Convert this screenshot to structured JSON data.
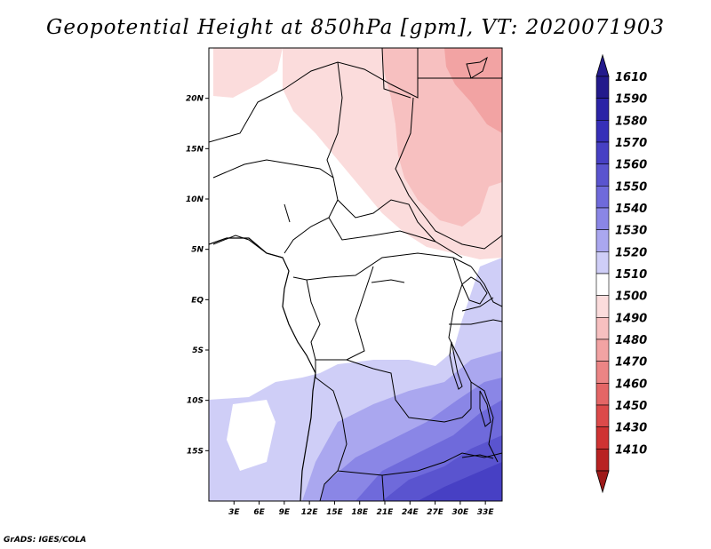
{
  "title": "Geopotential Height at 850hPa [gpm], VT: 2020071903",
  "footer": "GrADS: IGES/COLA",
  "map": {
    "lon_range": [
      0,
      35
    ],
    "lat_range": [
      -20,
      25
    ],
    "lon_ticks": [
      {
        "value": 3,
        "label": "3E"
      },
      {
        "value": 6,
        "label": "6E"
      },
      {
        "value": 9,
        "label": "9E"
      },
      {
        "value": 12,
        "label": "12E"
      },
      {
        "value": 15,
        "label": "15E"
      },
      {
        "value": 18,
        "label": "18E"
      },
      {
        "value": 21,
        "label": "21E"
      },
      {
        "value": 24,
        "label": "24E"
      },
      {
        "value": 27,
        "label": "27E"
      },
      {
        "value": 30,
        "label": "30E"
      },
      {
        "value": 33,
        "label": "33E"
      }
    ],
    "lat_ticks": [
      {
        "value": 20,
        "label": "20N"
      },
      {
        "value": 15,
        "label": "15N"
      },
      {
        "value": 10,
        "label": "10N"
      },
      {
        "value": 5,
        "label": "5N"
      },
      {
        "value": 0,
        "label": "EQ"
      },
      {
        "value": -5,
        "label": "5S"
      },
      {
        "value": -10,
        "label": "10S"
      },
      {
        "value": -15,
        "label": "15S"
      }
    ]
  },
  "colorbar": {
    "levels": [
      {
        "label": "1610",
        "color": "#231a8c"
      },
      {
        "label": "1590",
        "color": "#2b23a6"
      },
      {
        "label": "1580",
        "color": "#362fb8"
      },
      {
        "label": "1570",
        "color": "#4740c4"
      },
      {
        "label": "1560",
        "color": "#5a54cf"
      },
      {
        "label": "1550",
        "color": "#6f6adb"
      },
      {
        "label": "1540",
        "color": "#8a86e6"
      },
      {
        "label": "1530",
        "color": "#aaa7ef"
      },
      {
        "label": "1520",
        "color": "#cfcef7"
      },
      {
        "label": "1510",
        "color": "#ffffff"
      },
      {
        "label": "1500",
        "color": "#fbdcdc"
      },
      {
        "label": "1490",
        "color": "#f7c0c0"
      },
      {
        "label": "1480",
        "color": "#f2a3a3"
      },
      {
        "label": "1470",
        "color": "#ec8585"
      },
      {
        "label": "1460",
        "color": "#e46666"
      },
      {
        "label": "1450",
        "color": "#dc4a4a"
      },
      {
        "label": "1430",
        "color": "#cf3333"
      },
      {
        "label": "1410",
        "color": "#b82222"
      }
    ],
    "bottom_color": "#9e1a1a"
  }
}
